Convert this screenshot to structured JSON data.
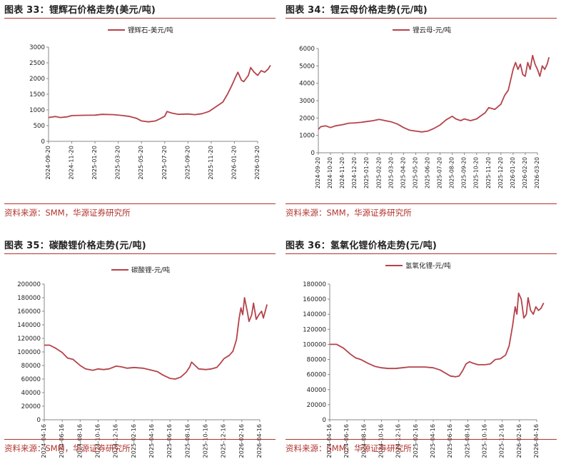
{
  "source_text": "资料来源：SMM，华源证券研究所",
  "colors": {
    "line": "#b5424a",
    "accent": "#b2332d",
    "axis": "#888888",
    "text": "#222222"
  },
  "chart_data": [
    {
      "type": "line",
      "title": "图表 33：锂辉石价格走势(美元/吨)",
      "series": [
        {
          "name": "锂辉石-美元/吨"
        }
      ],
      "categories": [
        "2024-09-20",
        "2024-11-20",
        "2025-01-20",
        "2025-03-20",
        "2025-05-20",
        "2025-07-20",
        "2025-09-20",
        "2025-11-20",
        "2026-01-20",
        "2026-03-20"
      ],
      "ylim": [
        0,
        3000
      ],
      "yticks": [
        0,
        500,
        1000,
        1500,
        2000,
        2500,
        3000
      ],
      "points": [
        [
          0,
          760
        ],
        [
          0.3,
          790
        ],
        [
          0.5,
          760
        ],
        [
          0.8,
          780
        ],
        [
          1,
          820
        ],
        [
          1.5,
          830
        ],
        [
          2,
          835
        ],
        [
          2.3,
          860
        ],
        [
          2.8,
          850
        ],
        [
          3.2,
          820
        ],
        [
          3.5,
          790
        ],
        [
          3.8,
          730
        ],
        [
          4,
          650
        ],
        [
          4.3,
          620
        ],
        [
          4.6,
          650
        ],
        [
          4.8,
          720
        ],
        [
          5,
          800
        ],
        [
          5.1,
          950
        ],
        [
          5.3,
          900
        ],
        [
          5.6,
          860
        ],
        [
          6,
          870
        ],
        [
          6.3,
          850
        ],
        [
          6.6,
          880
        ],
        [
          6.9,
          950
        ],
        [
          7.2,
          1100
        ],
        [
          7.5,
          1250
        ],
        [
          7.7,
          1500
        ],
        [
          7.9,
          1800
        ],
        [
          8.05,
          2050
        ],
        [
          8.15,
          2200
        ],
        [
          8.3,
          1950
        ],
        [
          8.4,
          1900
        ],
        [
          8.6,
          2100
        ],
        [
          8.7,
          2350
        ],
        [
          8.85,
          2200
        ],
        [
          9.0,
          2100
        ],
        [
          9.15,
          2250
        ],
        [
          9.3,
          2200
        ],
        [
          9.45,
          2300
        ],
        [
          9.55,
          2420
        ]
      ]
    },
    {
      "type": "line",
      "title": "图表 34：锂云母价格走势(元/吨)",
      "series": [
        {
          "name": "锂云母-元/吨"
        }
      ],
      "categories": [
        "2024-09-20",
        "2024-10-20",
        "2024-11-20",
        "2024-12-20",
        "2025-01-20",
        "2025-02-20",
        "2025-03-20",
        "2025-04-20",
        "2025-05-20",
        "2025-06-20",
        "2025-07-20",
        "2025-08-20",
        "2025-09-20",
        "2025-10-20",
        "2025-11-20",
        "2025-12-20",
        "2026-01-20",
        "2026-02-20",
        "2026-03-20"
      ],
      "ylim": [
        0,
        6000
      ],
      "yticks": [
        0,
        1000,
        2000,
        3000,
        4000,
        5000,
        6000
      ],
      "points": [
        [
          0,
          1350
        ],
        [
          0.2,
          1500
        ],
        [
          0.6,
          1550
        ],
        [
          1,
          1450
        ],
        [
          1.4,
          1550
        ],
        [
          2,
          1620
        ],
        [
          2.5,
          1700
        ],
        [
          3,
          1720
        ],
        [
          3.5,
          1750
        ],
        [
          4,
          1800
        ],
        [
          4.5,
          1850
        ],
        [
          5,
          1920
        ],
        [
          5.5,
          1850
        ],
        [
          6,
          1780
        ],
        [
          6.5,
          1650
        ],
        [
          7,
          1450
        ],
        [
          7.5,
          1300
        ],
        [
          8,
          1250
        ],
        [
          8.5,
          1200
        ],
        [
          9,
          1250
        ],
        [
          9.5,
          1400
        ],
        [
          10,
          1600
        ],
        [
          10.5,
          1900
        ],
        [
          11,
          2100
        ],
        [
          11.3,
          1950
        ],
        [
          11.7,
          1850
        ],
        [
          12,
          1950
        ],
        [
          12.5,
          1850
        ],
        [
          13,
          1950
        ],
        [
          13.3,
          2100
        ],
        [
          13.7,
          2300
        ],
        [
          14,
          2600
        ],
        [
          14.5,
          2500
        ],
        [
          15,
          2800
        ],
        [
          15.3,
          3300
        ],
        [
          15.6,
          3600
        ],
        [
          15.8,
          4200
        ],
        [
          16,
          4800
        ],
        [
          16.2,
          5200
        ],
        [
          16.4,
          4800
        ],
        [
          16.6,
          5100
        ],
        [
          16.8,
          4500
        ],
        [
          17,
          4400
        ],
        [
          17.2,
          5200
        ],
        [
          17.4,
          4800
        ],
        [
          17.6,
          5600
        ],
        [
          17.8,
          5100
        ],
        [
          18,
          4800
        ],
        [
          18.2,
          4400
        ],
        [
          18.4,
          5000
        ],
        [
          18.6,
          4800
        ],
        [
          18.8,
          5100
        ],
        [
          18.95,
          5500
        ]
      ]
    },
    {
      "type": "line",
      "title": "图表 35：碳酸锂价格走势(元/吨)",
      "series": [
        {
          "name": "碳酸锂-元/吨"
        }
      ],
      "categories": [
        "2024-04-16",
        "2024-06-16",
        "2024-08-16",
        "2024-10-16",
        "2024-12-16",
        "2025-02-16",
        "2025-04-16",
        "2025-06-16",
        "2025-08-16",
        "2025-10-16",
        "2025-12-16",
        "2026-02-16",
        "2026-04-16"
      ],
      "ylim": [
        0,
        200000
      ],
      "yticks": [
        0,
        20000,
        40000,
        60000,
        80000,
        100000,
        120000,
        140000,
        160000,
        180000,
        200000
      ],
      "points": [
        [
          0,
          110000
        ],
        [
          0.3,
          110000
        ],
        [
          0.6,
          106000
        ],
        [
          1,
          99000
        ],
        [
          1.3,
          91000
        ],
        [
          1.6,
          89000
        ],
        [
          2,
          80000
        ],
        [
          2.3,
          75000
        ],
        [
          2.7,
          73000
        ],
        [
          3,
          75000
        ],
        [
          3.3,
          74000
        ],
        [
          3.6,
          75000
        ],
        [
          4,
          79000
        ],
        [
          4.3,
          78000
        ],
        [
          4.6,
          76000
        ],
        [
          5,
          77000
        ],
        [
          5.5,
          76000
        ],
        [
          6,
          73000
        ],
        [
          6.3,
          71000
        ],
        [
          6.6,
          66000
        ],
        [
          7,
          61000
        ],
        [
          7.3,
          60000
        ],
        [
          7.6,
          63000
        ],
        [
          7.9,
          70000
        ],
        [
          8.1,
          78000
        ],
        [
          8.2,
          85000
        ],
        [
          8.4,
          80000
        ],
        [
          8.6,
          75000
        ],
        [
          9,
          74000
        ],
        [
          9.3,
          75000
        ],
        [
          9.6,
          77000
        ],
        [
          9.8,
          83000
        ],
        [
          10,
          90000
        ],
        [
          10.3,
          95000
        ],
        [
          10.5,
          101000
        ],
        [
          10.7,
          118000
        ],
        [
          10.85,
          150000
        ],
        [
          10.95,
          165000
        ],
        [
          11.05,
          155000
        ],
        [
          11.15,
          180000
        ],
        [
          11.3,
          160000
        ],
        [
          11.4,
          145000
        ],
        [
          11.55,
          155000
        ],
        [
          11.65,
          172000
        ],
        [
          11.8,
          148000
        ],
        [
          11.95,
          155000
        ],
        [
          12.1,
          160000
        ],
        [
          12.2,
          150000
        ],
        [
          12.3,
          160000
        ],
        [
          12.4,
          170000
        ]
      ]
    },
    {
      "type": "line",
      "title": "图表 36：氢氧化锂价格走势(元/吨)",
      "series": [
        {
          "name": "氢氧化锂-元/吨"
        }
      ],
      "categories": [
        "2024-04-16",
        "2024-06-16",
        "2024-08-16",
        "2024-10-16",
        "2024-12-16",
        "2025-02-16",
        "2025-04-16",
        "2025-06-16",
        "2025-08-16",
        "2025-10-16",
        "2025-12-16",
        "2026-02-16",
        "2026-04-16"
      ],
      "ylim": [
        0,
        180000
      ],
      "yticks": [
        0,
        20000,
        40000,
        60000,
        80000,
        100000,
        120000,
        140000,
        160000,
        180000
      ],
      "points": [
        [
          0,
          100000
        ],
        [
          0.4,
          100000
        ],
        [
          0.8,
          95000
        ],
        [
          1.2,
          87000
        ],
        [
          1.5,
          82000
        ],
        [
          1.8,
          80000
        ],
        [
          2.2,
          75000
        ],
        [
          2.6,
          71000
        ],
        [
          3,
          69000
        ],
        [
          3.4,
          68000
        ],
        [
          3.8,
          68000
        ],
        [
          4.2,
          69000
        ],
        [
          4.6,
          70000
        ],
        [
          5,
          70000
        ],
        [
          5.5,
          70000
        ],
        [
          6,
          69000
        ],
        [
          6.4,
          66000
        ],
        [
          6.7,
          62000
        ],
        [
          7,
          58000
        ],
        [
          7.3,
          57000
        ],
        [
          7.5,
          58000
        ],
        [
          7.7,
          65000
        ],
        [
          7.9,
          74000
        ],
        [
          8.1,
          77000
        ],
        [
          8.3,
          75000
        ],
        [
          8.6,
          73000
        ],
        [
          9,
          73000
        ],
        [
          9.3,
          74000
        ],
        [
          9.6,
          80000
        ],
        [
          9.9,
          81000
        ],
        [
          10.2,
          86000
        ],
        [
          10.4,
          98000
        ],
        [
          10.6,
          125000
        ],
        [
          10.75,
          150000
        ],
        [
          10.85,
          140000
        ],
        [
          10.95,
          168000
        ],
        [
          11.1,
          160000
        ],
        [
          11.25,
          135000
        ],
        [
          11.4,
          140000
        ],
        [
          11.5,
          162000
        ],
        [
          11.65,
          145000
        ],
        [
          11.8,
          140000
        ],
        [
          11.95,
          150000
        ],
        [
          12.1,
          145000
        ],
        [
          12.25,
          148000
        ],
        [
          12.4,
          155000
        ]
      ]
    }
  ]
}
